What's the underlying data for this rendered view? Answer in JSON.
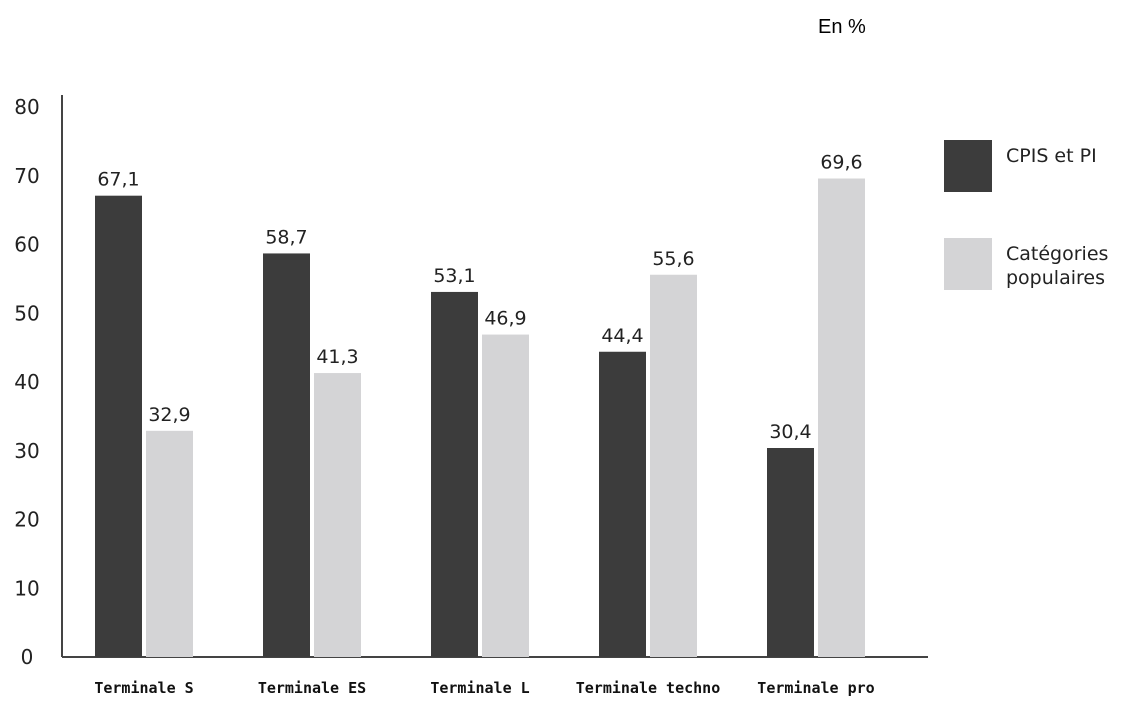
{
  "unit_label": "En %",
  "chart_data": {
    "type": "bar",
    "title": "",
    "xlabel": "",
    "ylabel": "",
    "categories": [
      "Terminale S",
      "Terminale ES",
      "Terminale L",
      "Terminale techno",
      "Terminale pro"
    ],
    "series": [
      {
        "name": "CPIS et PI",
        "color": "#3c3c3c",
        "values": [
          67.1,
          58.7,
          53.1,
          44.4,
          30.4
        ],
        "labels": [
          "67,1",
          "58,7",
          "53,1",
          "44,4",
          "30,4"
        ]
      },
      {
        "name": "Catégories populaires",
        "color": "#d4d4d6",
        "values": [
          32.9,
          41.3,
          46.9,
          55.6,
          69.6
        ],
        "labels": [
          "32,9",
          "41,3",
          "46,9",
          "55,6",
          "69,6"
        ]
      }
    ],
    "ylim": [
      0,
      80
    ],
    "yticks": [
      0,
      10,
      20,
      30,
      40,
      50,
      60,
      70,
      80
    ],
    "grid": false,
    "legend_position": "right"
  },
  "legend": [
    {
      "label_lines": [
        "CPIS et PI"
      ]
    },
    {
      "label_lines": [
        "Catégories",
        "populaires"
      ]
    }
  ]
}
